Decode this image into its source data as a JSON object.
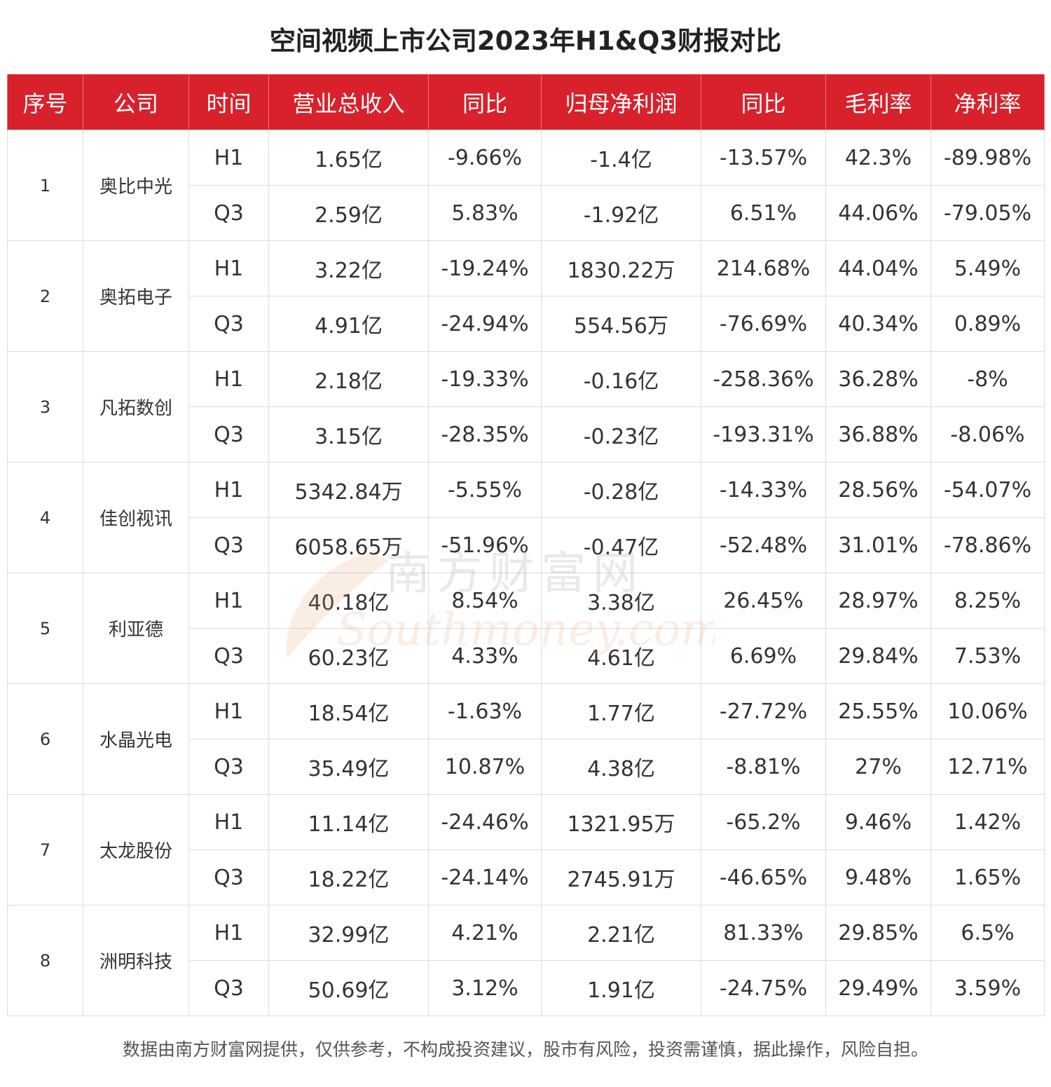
{
  "title": "空间视频上市公司2023年H1&Q3财报对比",
  "headers": [
    "序号",
    "公司",
    "时间",
    "营业总收入",
    "同比",
    "归母净利润",
    "同比",
    "毛利率",
    "净利率"
  ],
  "companies": [
    {
      "index": "1",
      "name": "奥比中光",
      "periods": [
        {
          "period": "H1",
          "revenue": "1.65亿",
          "revenue_yoy": "-9.66%",
          "net_profit": "-1.4亿",
          "profit_yoy": "-13.57%",
          "gross_margin": "42.3%",
          "net_margin": "-89.98%"
        },
        {
          "period": "Q3",
          "revenue": "2.59亿",
          "revenue_yoy": "5.83%",
          "net_profit": "-1.92亿",
          "profit_yoy": "6.51%",
          "gross_margin": "44.06%",
          "net_margin": "-79.05%"
        }
      ]
    },
    {
      "index": "2",
      "name": "奥拓电子",
      "periods": [
        {
          "period": "H1",
          "revenue": "3.22亿",
          "revenue_yoy": "-19.24%",
          "net_profit": "1830.22万",
          "profit_yoy": "214.68%",
          "gross_margin": "44.04%",
          "net_margin": "5.49%"
        },
        {
          "period": "Q3",
          "revenue": "4.91亿",
          "revenue_yoy": "-24.94%",
          "net_profit": "554.56万",
          "profit_yoy": "-76.69%",
          "gross_margin": "40.34%",
          "net_margin": "0.89%"
        }
      ]
    },
    {
      "index": "3",
      "name": "凡拓数创",
      "periods": [
        {
          "period": "H1",
          "revenue": "2.18亿",
          "revenue_yoy": "-19.33%",
          "net_profit": "-0.16亿",
          "profit_yoy": "-258.36%",
          "gross_margin": "36.28%",
          "net_margin": "-8%"
        },
        {
          "period": "Q3",
          "revenue": "3.15亿",
          "revenue_yoy": "-28.35%",
          "net_profit": "-0.23亿",
          "profit_yoy": "-193.31%",
          "gross_margin": "36.88%",
          "net_margin": "-8.06%"
        }
      ]
    },
    {
      "index": "4",
      "name": "佳创视讯",
      "periods": [
        {
          "period": "H1",
          "revenue": "5342.84万",
          "revenue_yoy": "-5.55%",
          "net_profit": "-0.28亿",
          "profit_yoy": "-14.33%",
          "gross_margin": "28.56%",
          "net_margin": "-54.07%"
        },
        {
          "period": "Q3",
          "revenue": "6058.65万",
          "revenue_yoy": "-51.96%",
          "net_profit": "-0.47亿",
          "profit_yoy": "-52.48%",
          "gross_margin": "31.01%",
          "net_margin": "-78.86%"
        }
      ]
    },
    {
      "index": "5",
      "name": "利亚德",
      "periods": [
        {
          "period": "H1",
          "revenue": "40.18亿",
          "revenue_yoy": "8.54%",
          "net_profit": "3.38亿",
          "profit_yoy": "26.45%",
          "gross_margin": "28.97%",
          "net_margin": "8.25%"
        },
        {
          "period": "Q3",
          "revenue": "60.23亿",
          "revenue_yoy": "4.33%",
          "net_profit": "4.61亿",
          "profit_yoy": "6.69%",
          "gross_margin": "29.84%",
          "net_margin": "7.53%"
        }
      ]
    },
    {
      "index": "6",
      "name": "水晶光电",
      "periods": [
        {
          "period": "H1",
          "revenue": "18.54亿",
          "revenue_yoy": "-1.63%",
          "net_profit": "1.77亿",
          "profit_yoy": "-27.72%",
          "gross_margin": "25.55%",
          "net_margin": "10.06%"
        },
        {
          "period": "Q3",
          "revenue": "35.49亿",
          "revenue_yoy": "10.87%",
          "net_profit": "4.38亿",
          "profit_yoy": "-8.81%",
          "gross_margin": "27%",
          "net_margin": "12.71%"
        }
      ]
    },
    {
      "index": "7",
      "name": "太龙股份",
      "periods": [
        {
          "period": "H1",
          "revenue": "11.14亿",
          "revenue_yoy": "-24.46%",
          "net_profit": "1321.95万",
          "profit_yoy": "-65.2%",
          "gross_margin": "9.46%",
          "net_margin": "1.42%"
        },
        {
          "period": "Q3",
          "revenue": "18.22亿",
          "revenue_yoy": "-24.14%",
          "net_profit": "2745.91万",
          "profit_yoy": "-46.65%",
          "gross_margin": "9.48%",
          "net_margin": "1.65%"
        }
      ]
    },
    {
      "index": "8",
      "name": "洲明科技",
      "periods": [
        {
          "period": "H1",
          "revenue": "32.99亿",
          "revenue_yoy": "4.21%",
          "net_profit": "2.21亿",
          "profit_yoy": "81.33%",
          "gross_margin": "29.85%",
          "net_margin": "6.5%"
        },
        {
          "period": "Q3",
          "revenue": "50.69亿",
          "revenue_yoy": "3.12%",
          "net_profit": "1.91亿",
          "profit_yoy": "-24.75%",
          "gross_margin": "29.49%",
          "net_margin": "3.59%"
        }
      ]
    }
  ],
  "watermark": {
    "cn": "南方财富网",
    "en": "Southmoney.com"
  },
  "footer": "数据由南方财富网提供，仅供参考，不构成投资建议，股市有风险，投资需谨慎，据此操作，风险自担。",
  "colors": {
    "header_bg": "#d9212b",
    "header_text": "#ffffff",
    "border": "#dcdcdc",
    "watermark": "#e8a070"
  }
}
